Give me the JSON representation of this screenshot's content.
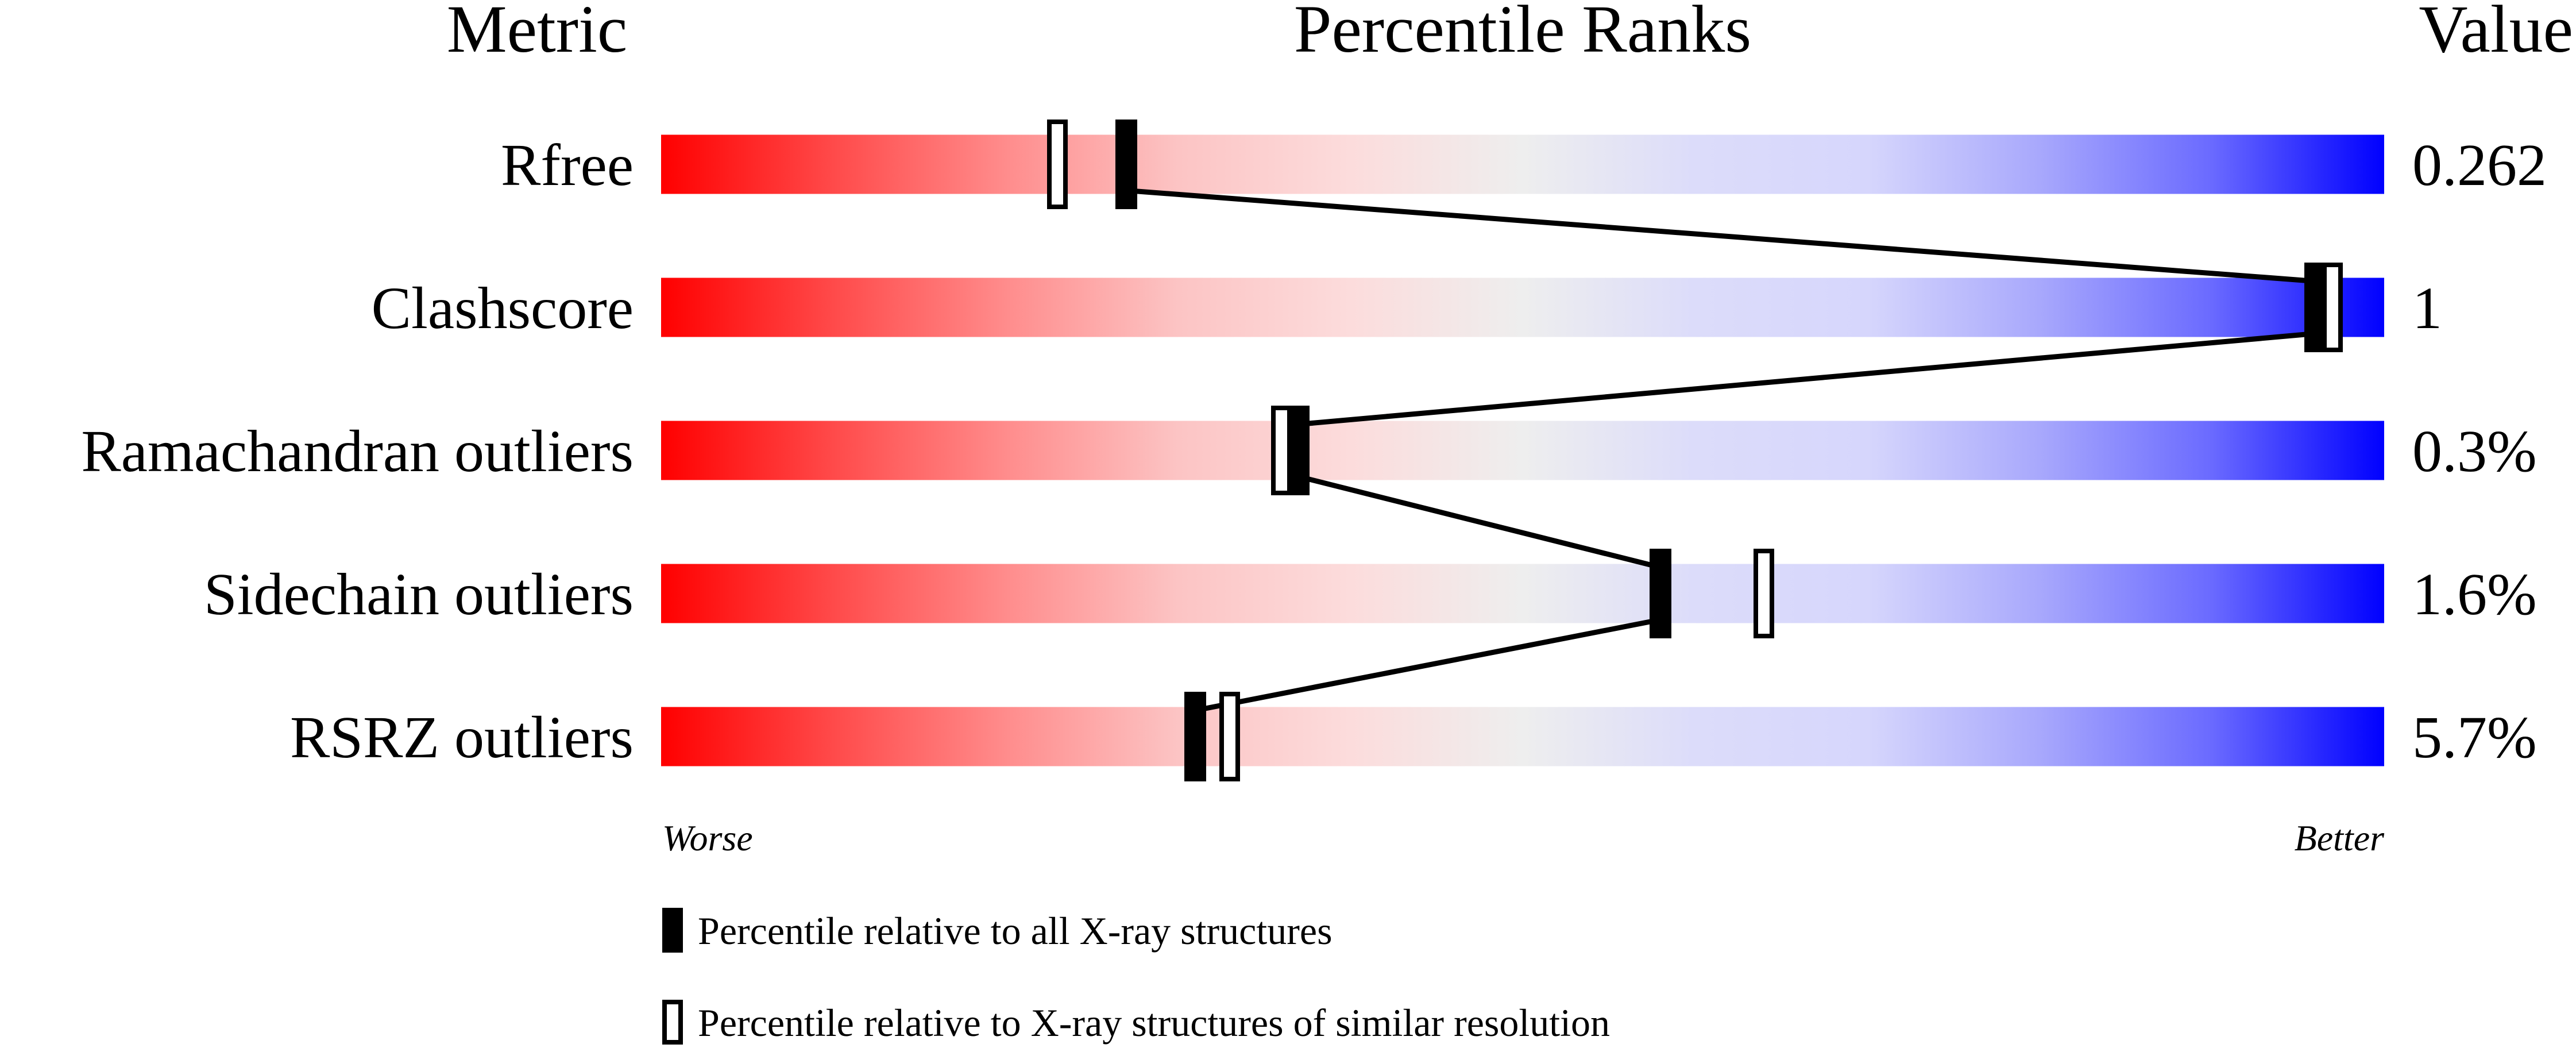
{
  "chart_data": {
    "type": "percentile-rank",
    "headers": {
      "metric": "Metric",
      "ranks": "Percentile Ranks",
      "value": "Value"
    },
    "xlim": [
      0,
      100
    ],
    "axis_labels": {
      "left": "Worse",
      "right": "Better"
    },
    "gradient_colors": {
      "worse": "#ff0000",
      "middle": "#eeeeee",
      "better": "#0000ff"
    },
    "metrics": [
      {
        "label": "Rfree",
        "value": "0.262",
        "percentile_all": 27,
        "percentile_similar": 23
      },
      {
        "label": "Clashscore",
        "value": "1",
        "percentile_all": 96,
        "percentile_similar": 97
      },
      {
        "label": "Ramachandran outliers",
        "value": "0.3%",
        "percentile_all": 37,
        "percentile_similar": 36
      },
      {
        "label": "Sidechain outliers",
        "value": "1.6%",
        "percentile_all": 58,
        "percentile_similar": 64
      },
      {
        "label": "RSRZ outliers",
        "value": "5.7%",
        "percentile_all": 31,
        "percentile_similar": 33
      }
    ],
    "legend": [
      {
        "marker": "filled",
        "text": "Percentile relative to all X-ray structures"
      },
      {
        "marker": "open",
        "text": "Percentile relative to X-ray structures of similar resolution"
      }
    ]
  }
}
